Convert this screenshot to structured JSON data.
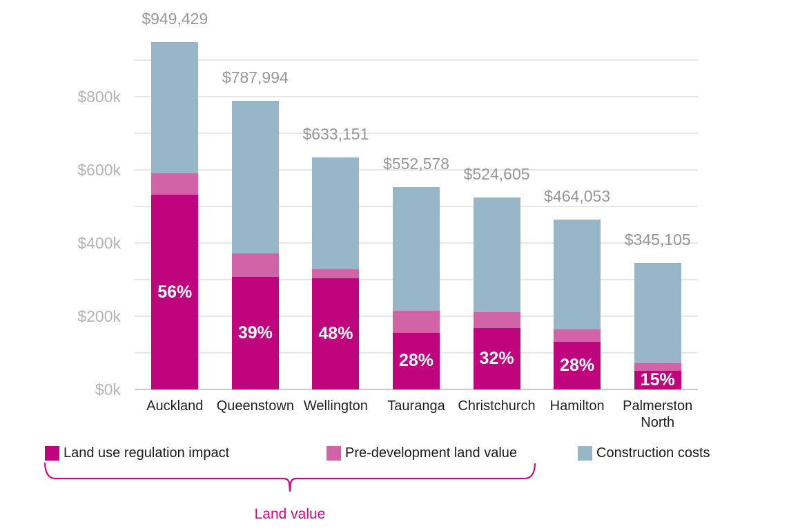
{
  "chart_data": {
    "type": "bar",
    "stacked": true,
    "title": "",
    "categories": [
      "Auckland",
      "Queenstown",
      "Wellington",
      "Tauranga",
      "Christchurch",
      "Hamilton",
      "Palmerston North"
    ],
    "series": [
      {
        "name": "Land use regulation impact",
        "color": "#c0047e",
        "values": [
          531680,
          307318,
          303912,
          154722,
          167874,
          129935,
          51766
        ]
      },
      {
        "name": "Pre-development land value",
        "color": "#d263a6",
        "values": [
          58320,
          63682,
          25088,
          60278,
          44126,
          34065,
          20234
        ]
      },
      {
        "name": "Construction costs",
        "color": "#97b6c7",
        "values": [
          359429,
          416994,
          304151,
          337578,
          312605,
          300053,
          273105
        ]
      }
    ],
    "totals": [
      949429,
      787994,
      633151,
      552578,
      524605,
      464053,
      345105
    ],
    "total_labels": [
      "$949,429",
      "$787,994",
      "$633,151",
      "$552,578",
      "$524,605",
      "$464,053",
      "$345,105"
    ],
    "bar_percent_labels": [
      "56%",
      "39%",
      "48%",
      "28%",
      "32%",
      "28%",
      "15%"
    ],
    "y_axis": {
      "tick_labels": [
        "$0k",
        "$200k",
        "$400k",
        "$600k",
        "$800k"
      ],
      "tick_values": [
        0,
        200000,
        400000,
        600000,
        800000
      ],
      "grid_step": 100000,
      "grid_max": 900000,
      "range": [
        0,
        1000000
      ],
      "grid": true
    },
    "legend": {
      "position": "bottom",
      "items": [
        {
          "label": "Land use regulation impact",
          "color": "#c0047e"
        },
        {
          "label": "Pre-development land value",
          "color": "#d263a6"
        },
        {
          "label": "Construction costs",
          "color": "#97b6c7"
        }
      ]
    },
    "annotation": {
      "label": "Land value",
      "color": "#cc0a7f",
      "spans_legend_items": [
        "Land use regulation impact",
        "Pre-development land value"
      ]
    }
  }
}
